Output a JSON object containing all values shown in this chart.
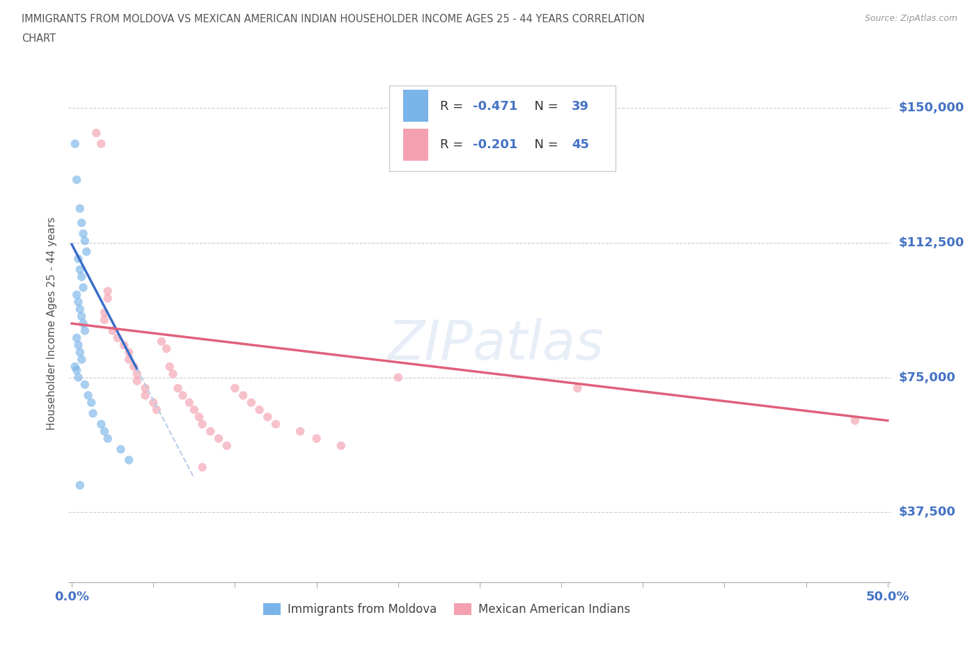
{
  "title_line1": "IMMIGRANTS FROM MOLDOVA VS MEXICAN AMERICAN INDIAN HOUSEHOLDER INCOME AGES 25 - 44 YEARS CORRELATION",
  "title_line2": "CHART",
  "source": "Source: ZipAtlas.com",
  "ylabel": "Householder Income Ages 25 - 44 years",
  "ytick_labels": [
    "$37,500",
    "$75,000",
    "$112,500",
    "$150,000"
  ],
  "ytick_values": [
    37500,
    75000,
    112500,
    150000
  ],
  "ylim": [
    18000,
    162000
  ],
  "xlim": [
    -0.002,
    0.502
  ],
  "watermark": "ZIPatlas",
  "color_moldova": "#7ab4e8",
  "color_mexican": "#f4a0b0",
  "color_line_moldova": "#3a6cc8",
  "color_line_mexican": "#e0607a",
  "color_line_dashed": "#b8cce8",
  "moldova_x": [
    0.003,
    0.005,
    0.006,
    0.007,
    0.008,
    0.009,
    0.004,
    0.005,
    0.006,
    0.007,
    0.003,
    0.004,
    0.005,
    0.006,
    0.007,
    0.008,
    0.003,
    0.004,
    0.005,
    0.006,
    0.002,
    0.003,
    0.004,
    0.008,
    0.01,
    0.012,
    0.013,
    0.018,
    0.02,
    0.022,
    0.03,
    0.035,
    0.005,
    0.002
  ],
  "moldova_y": [
    130000,
    122000,
    118000,
    115000,
    113000,
    110000,
    108000,
    105000,
    103000,
    100000,
    98000,
    96000,
    94000,
    92000,
    90000,
    88000,
    86000,
    84000,
    82000,
    80000,
    78000,
    77000,
    75000,
    73000,
    70000,
    68000,
    65000,
    62000,
    60000,
    58000,
    55000,
    52000,
    45000,
    140000
  ],
  "mexican_x": [
    0.015,
    0.018,
    0.02,
    0.02,
    0.025,
    0.028,
    0.032,
    0.035,
    0.035,
    0.038,
    0.04,
    0.04,
    0.045,
    0.045,
    0.05,
    0.052,
    0.055,
    0.058,
    0.06,
    0.062,
    0.065,
    0.068,
    0.072,
    0.075,
    0.078,
    0.08,
    0.085,
    0.09,
    0.095,
    0.1,
    0.105,
    0.11,
    0.115,
    0.12,
    0.125,
    0.14,
    0.15,
    0.165,
    0.2,
    0.31,
    0.48,
    0.022,
    0.022,
    0.08
  ],
  "mexican_y": [
    143000,
    140000,
    93000,
    91000,
    88000,
    86000,
    84000,
    82000,
    80000,
    78000,
    76000,
    74000,
    72000,
    70000,
    68000,
    66000,
    85000,
    83000,
    78000,
    76000,
    72000,
    70000,
    68000,
    66000,
    64000,
    62000,
    60000,
    58000,
    56000,
    72000,
    70000,
    68000,
    66000,
    64000,
    62000,
    60000,
    58000,
    56000,
    75000,
    72000,
    63000,
    99000,
    97000,
    50000
  ],
  "trend_moldova_x0": 0.0,
  "trend_moldova_y0": 112000,
  "trend_moldova_x1": 0.075,
  "trend_moldova_y1": 47000,
  "trend_moldova_solid_end": 0.04,
  "trend_mexican_x0": 0.0,
  "trend_mexican_y0": 90000,
  "trend_mexican_x1": 0.5,
  "trend_mexican_y1": 63000
}
